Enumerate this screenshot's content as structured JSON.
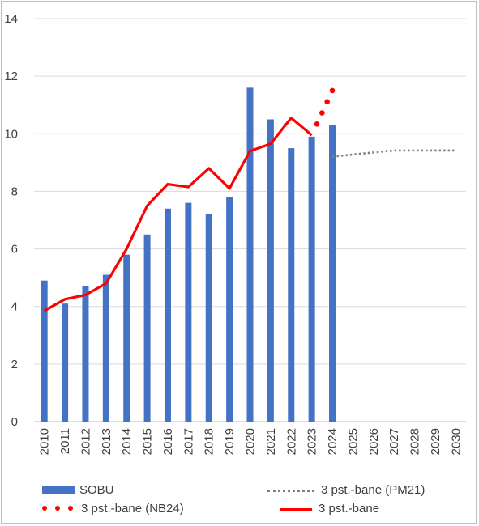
{
  "chart_data": {
    "type": "bar",
    "categories": [
      "2010",
      "2011",
      "2012",
      "2013",
      "2014",
      "2015",
      "2016",
      "2017",
      "2018",
      "2019",
      "2020",
      "2021",
      "2022",
      "2023",
      "2024",
      "2025",
      "2026",
      "2027",
      "2028",
      "2029",
      "2030"
    ],
    "ylim": [
      0,
      14
    ],
    "yticks": [
      0,
      2,
      4,
      6,
      8,
      10,
      12,
      14
    ],
    "grid": true,
    "legend_position": "bottom",
    "series": [
      {
        "name": "SOBU",
        "kind": "bar",
        "color": "#4472c4",
        "x": [
          "2010",
          "2011",
          "2012",
          "2013",
          "2014",
          "2015",
          "2016",
          "2017",
          "2018",
          "2019",
          "2020",
          "2021",
          "2022",
          "2023",
          "2024"
        ],
        "values": [
          4.9,
          4.1,
          4.7,
          5.1,
          5.8,
          6.5,
          7.4,
          7.6,
          7.2,
          7.8,
          11.6,
          10.5,
          9.5,
          9.9,
          10.3
        ]
      },
      {
        "name": "3 pst.-bane",
        "kind": "line",
        "style": "solid",
        "color": "#ff0000",
        "x": [
          "2010",
          "2011",
          "2012",
          "2013",
          "2014",
          "2015",
          "2016",
          "2017",
          "2018",
          "2019",
          "2020",
          "2021",
          "2022",
          "2023"
        ],
        "values": [
          3.85,
          4.25,
          4.4,
          4.8,
          6.0,
          7.5,
          8.25,
          8.15,
          8.8,
          8.1,
          9.4,
          9.65,
          10.55,
          9.95
        ]
      },
      {
        "name": "3 pst.-bane (NB24)",
        "kind": "line",
        "style": "dots",
        "color": "#ff0000",
        "x": [
          "2023",
          "2024"
        ],
        "values": [
          9.95,
          11.5
        ]
      },
      {
        "name": "3 pst.-bane (PM21)",
        "kind": "line",
        "style": "dotted",
        "color": "#808080",
        "x": [
          "2024",
          "2025",
          "2026",
          "2027",
          "2028",
          "2029",
          "2030"
        ],
        "values": [
          9.2,
          9.28,
          9.35,
          9.42,
          9.42,
          9.42,
          9.42
        ]
      }
    ]
  },
  "legend": {
    "sobu": "SOBU",
    "pm21": "3 pst.-bane (PM21)",
    "nb24": "3 pst.-bane (NB24)",
    "base": "3 pst.-bane"
  }
}
